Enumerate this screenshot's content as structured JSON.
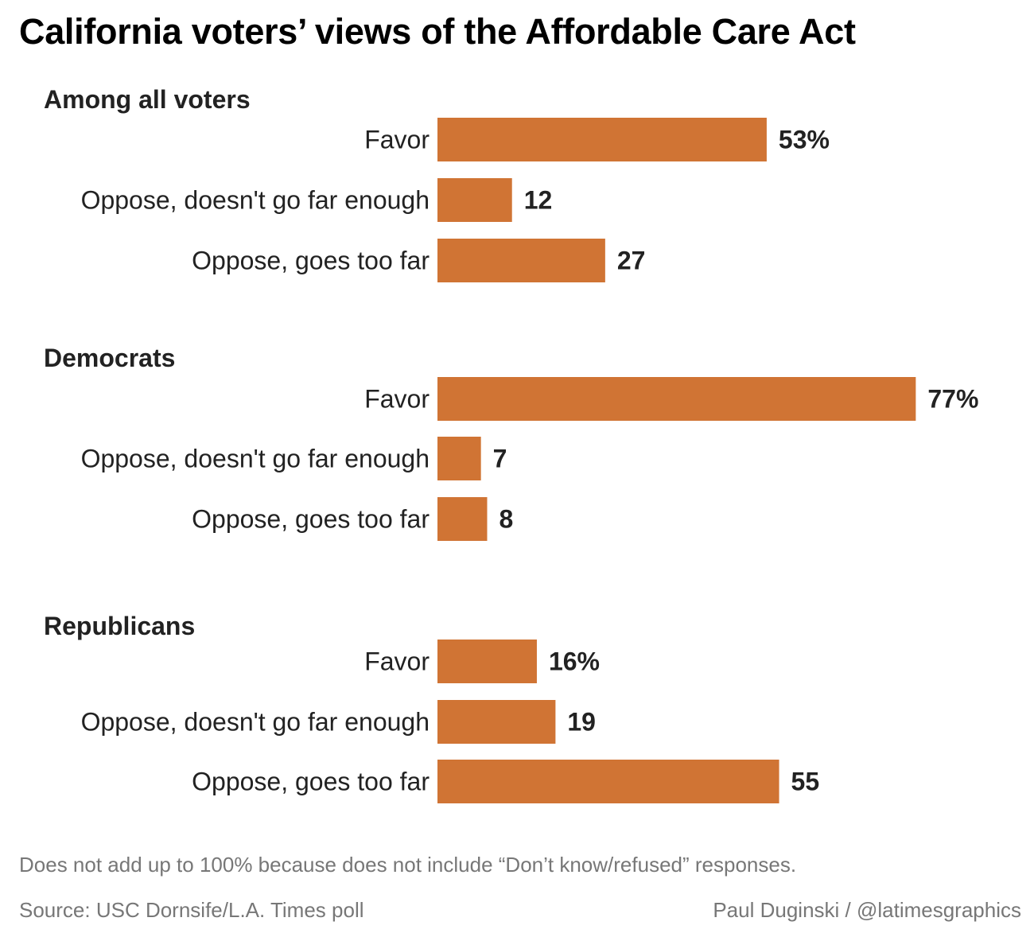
{
  "title": "California voters’ views of the Affordable Care Act",
  "colors": {
    "bar": "#d07434",
    "text": "#222222",
    "muted": "#777777"
  },
  "chart_data": {
    "type": "bar",
    "orientation": "horizontal",
    "xlim": [
      0,
      100
    ],
    "grid": false,
    "groups": [
      {
        "name": "Among all voters",
        "categories": [
          "Favor",
          "Oppose, doesn't go far enough",
          "Oppose, goes too far"
        ],
        "values": [
          53,
          12,
          27
        ],
        "value_labels": [
          "53%",
          "12",
          "27"
        ]
      },
      {
        "name": "Democrats",
        "categories": [
          "Favor",
          "Oppose, doesn't go far enough",
          "Oppose, goes too far"
        ],
        "values": [
          77,
          7,
          8
        ],
        "value_labels": [
          "77%",
          "7",
          "8"
        ]
      },
      {
        "name": "Republicans",
        "categories": [
          "Favor",
          "Oppose, doesn't go far enough",
          "Oppose, goes too far"
        ],
        "values": [
          16,
          19,
          55
        ],
        "value_labels": [
          "16%",
          "19",
          "55"
        ]
      }
    ]
  },
  "footer": {
    "note": "Does not add up to 100% because does not include “Don’t know/refused” responses.",
    "source": "Source: USC Dornsife/L.A. Times poll",
    "credit": "Paul Duginski / @latimesgraphics"
  }
}
